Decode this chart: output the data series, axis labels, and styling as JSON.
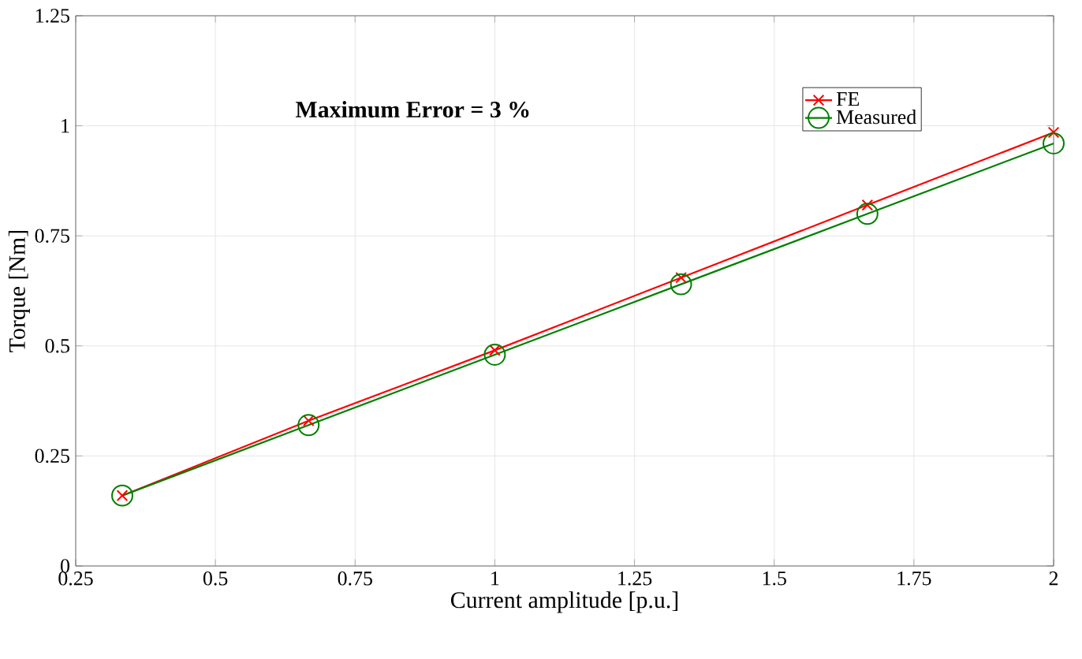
{
  "chart_data": {
    "type": "line",
    "xlabel": "Current amplitude [p.u.]",
    "ylabel": "Torque [Nm]",
    "annotations": [
      "**Maximum Error = 3 %**"
    ],
    "x": [
      0.3333,
      0.6667,
      1.0,
      1.3333,
      1.6667,
      2.0
    ],
    "series": [
      {
        "name": "FE",
        "color": "#ff0000",
        "marker": "cross",
        "values": [
          0.16,
          0.33,
          0.49,
          0.655,
          0.82,
          0.985
        ]
      },
      {
        "name": "Measured",
        "color": "#008000",
        "marker": "circle",
        "values": [
          0.16,
          0.32,
          0.48,
          0.64,
          0.8,
          0.96
        ]
      }
    ],
    "xlim": [
      0.25,
      2
    ],
    "xticks": [
      0.25,
      0.5,
      0.75,
      1,
      1.25,
      1.5,
      1.75,
      2
    ],
    "ylim": [
      0,
      1.25
    ],
    "yticks": [
      0,
      0.25,
      0.5,
      0.75,
      1,
      1.25
    ],
    "grid": true,
    "legend": "top right",
    "line_style": "solid"
  }
}
